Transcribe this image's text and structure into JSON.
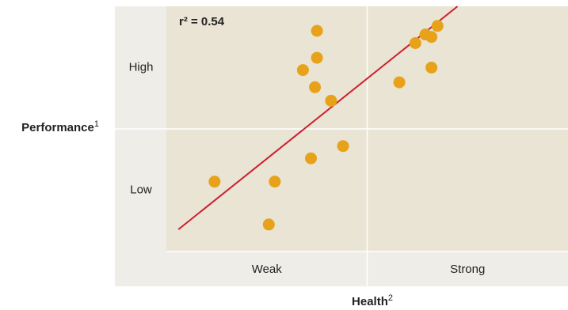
{
  "chart_data": {
    "type": "scatter",
    "annotation": "r² = 0.54",
    "x_label": {
      "text": "Health",
      "note": "2"
    },
    "y_label": {
      "text": "Performance",
      "note": "1"
    },
    "x_categories": [
      "Weak",
      "Strong"
    ],
    "y_categories": [
      "Low",
      "High"
    ],
    "xlim": [
      0,
      2
    ],
    "ylim": [
      0,
      2
    ],
    "color": "#e8a21a",
    "x": [
      0.75,
      0.75,
      0.68,
      0.74,
      0.82,
      0.88,
      0.72,
      0.54,
      0.24,
      0.51,
      1.16,
      1.24,
      1.29,
      1.32,
      1.35,
      1.32
    ],
    "y": [
      1.8,
      1.58,
      1.48,
      1.34,
      1.23,
      0.86,
      0.76,
      0.57,
      0.57,
      0.22,
      1.38,
      1.7,
      1.77,
      1.75,
      1.84,
      1.5
    ],
    "fit_line": {
      "color": "#cc1f2e",
      "x": [
        0.06,
        1.45
      ],
      "y": [
        0.18,
        2
      ]
    }
  }
}
